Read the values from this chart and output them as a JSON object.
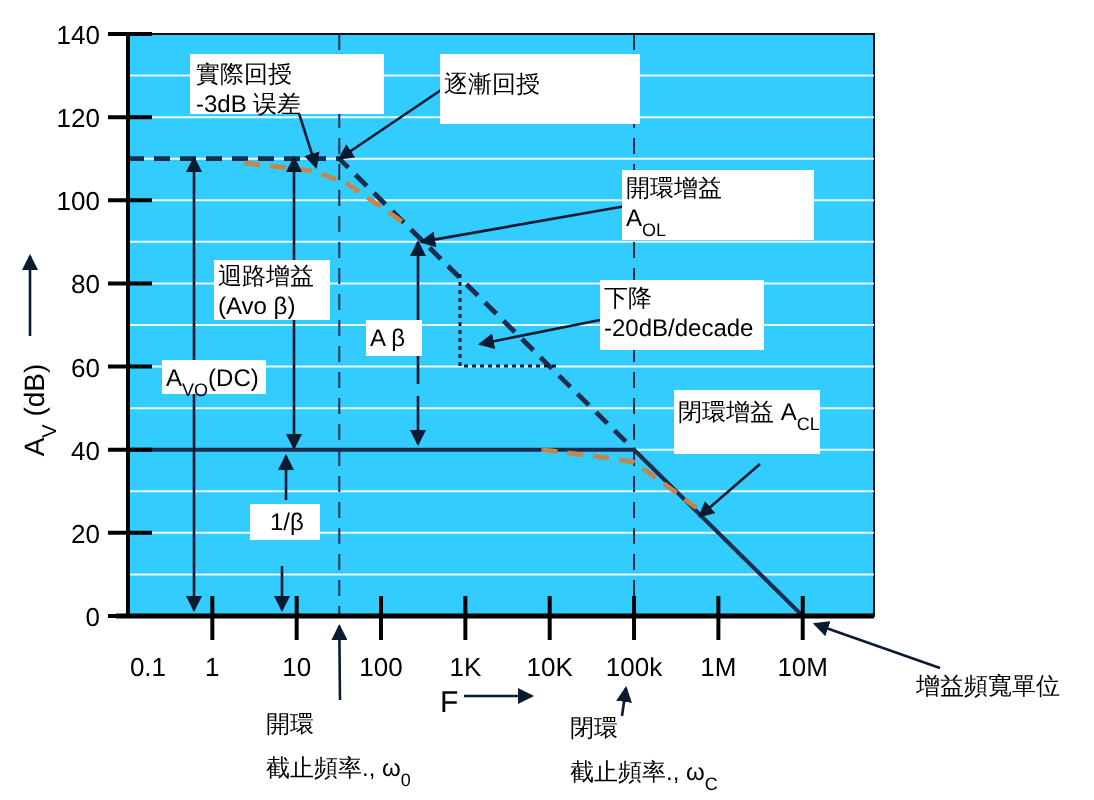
{
  "chart_data": {
    "type": "line",
    "xlabel": "F",
    "ylabel": "A$_{V}$ (dB)",
    "log": "x",
    "grid": "y",
    "xlim": [
      0.1,
      70000000
    ],
    "xticks": [
      {
        "value": 0.1,
        "label": "0.1"
      },
      1,
      10,
      100,
      {
        "value": 1000,
        "label": "1K"
      },
      {
        "value": 10000,
        "label": "10K"
      },
      {
        "value": 100000,
        "label": "100k"
      },
      {
        "value": 1000000,
        "label": "1M"
      },
      {
        "value": 10000000,
        "label": "10M"
      }
    ],
    "ylim": [
      0,
      140
    ],
    "yticks": [
      0,
      {
        "value": 10,
        "label": null
      },
      20,
      {
        "value": 30,
        "label": null
      },
      40,
      {
        "value": 50,
        "label": null
      },
      60,
      {
        "value": 70,
        "label": null
      },
      80,
      {
        "value": 90,
        "label": null
      },
      100,
      {
        "value": 110,
        "label": null
      },
      120,
      {
        "value": 130,
        "label": null
      },
      140
    ],
    "series": [
      {
        "color": "#1c2c4c",
        "line_style": "dashed",
        "x": [
          0.1,
          32,
          100000
        ],
        "values": [
          110,
          110,
          40
        ]
      },
      {
        "color": "#1c2c4c",
        "line_style": "solid",
        "x": [
          0.1,
          100000,
          10000000
        ],
        "values": [
          40,
          40,
          0
        ]
      },
      {
        "color": "#c08850",
        "line_style": "dashed",
        "x": [
          2.4,
          16,
          40,
          205
        ],
        "values": [
          109,
          107,
          104,
          94
        ]
      },
      {
        "color": "#c08850",
        "line_style": "dashed",
        "x": [
          8000,
          50000,
          100000,
          300000,
          550000
        ],
        "values": [
          40,
          38,
          37,
          30,
          26
        ]
      }
    ],
    "ref_lines": [
      {
        "axis": "x",
        "value": 32,
        "line_style": "dashed",
        "color": "#1c2c4c"
      },
      {
        "axis": "x",
        "value": 100000,
        "line_style": "dashed",
        "color": "#1c2c4c"
      }
    ],
    "annotations": [
      {
        "text": "實際回授\n-3dB 误差",
        "x": 17,
        "y": 108
      },
      {
        "text": "逐漸回授",
        "x": 32,
        "y": 110
      },
      {
        "text": "開環增益\nA$_{OL}$",
        "x": 300,
        "y": 90
      },
      "迴路增益\n(Avo β)",
      "A β",
      "下降\n-20dB/decade",
      "A$_{VO}$(DC)",
      "1/β",
      {
        "text": "閉環增益 A$_{CL}$",
        "x": 600000,
        "y": 24
      },
      {
        "text": "開環",
        "x": 32,
        "y": 0
      },
      "截止頻率., ω$_{0}$",
      "閉環",
      "截止頻率., ω$_{C}$",
      {
        "text": "增益頻寬單位",
        "x": 10000000,
        "y": 0
      }
    ]
  }
}
